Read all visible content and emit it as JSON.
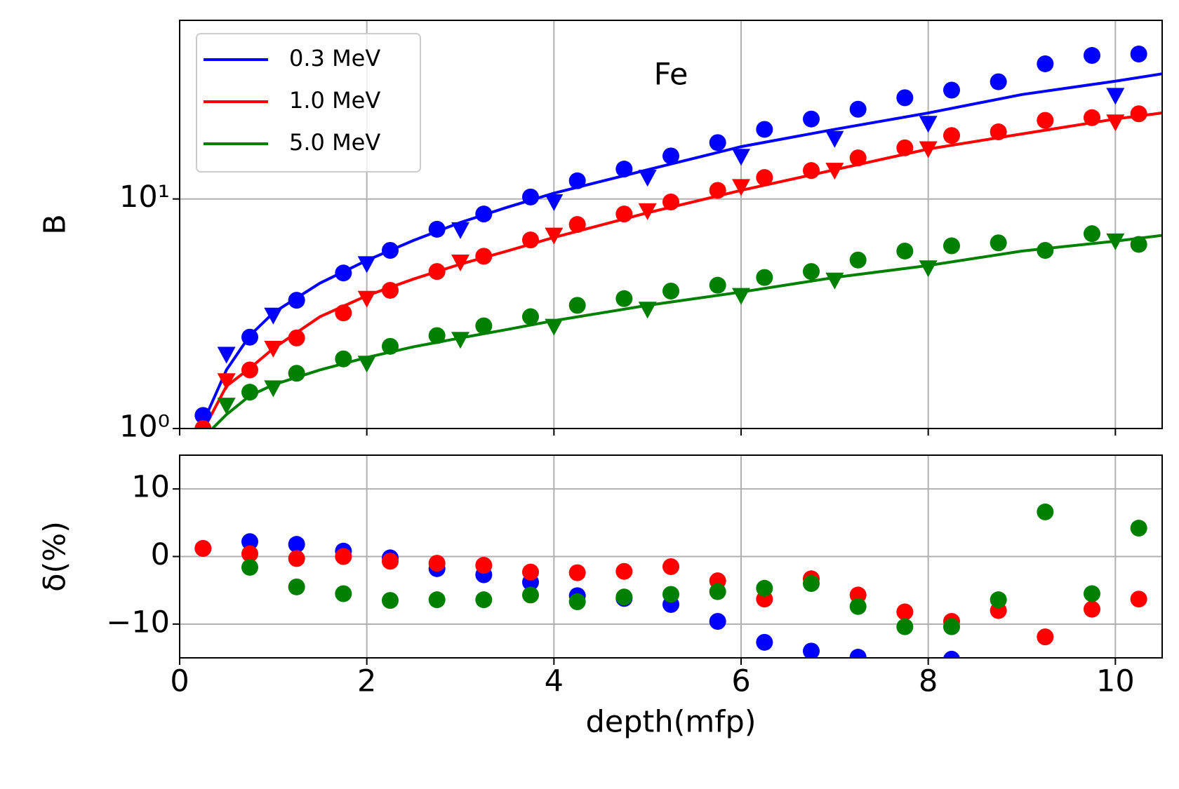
{
  "chart_data": [
    {
      "type": "line",
      "ylabel": "B",
      "annotation": "Fe",
      "log_y": true,
      "grid": true,
      "legend": "upper left",
      "xlim": [
        0,
        10.5
      ],
      "ylim": [
        1,
        60
      ],
      "xticks": [
        0,
        2,
        4,
        6,
        8,
        10
      ],
      "yticks": [
        {
          "value": 1,
          "label": "10⁰"
        },
        {
          "value": 10,
          "label": "10¹"
        }
      ],
      "series": [
        {
          "name": "0.3 MeV",
          "color": "#0000ff",
          "marker": "line",
          "x": [
            0.25,
            0.5,
            0.75,
            1,
            1.5,
            2,
            2.5,
            3,
            3.5,
            4,
            5,
            6,
            7,
            8,
            9,
            10,
            10.5
          ],
          "values": [
            1.06,
            1.8,
            2.54,
            3.19,
            4.3,
            5.4,
            6.6,
            7.9,
            9.2,
            10.6,
            13.4,
            16.9,
            20.1,
            23.7,
            28.5,
            32.6,
            35.1
          ]
        },
        {
          "name": "1.0 MeV",
          "color": "#ff0000",
          "marker": "line",
          "x": [
            0.25,
            0.5,
            0.75,
            1,
            1.5,
            2,
            2.5,
            3,
            3.5,
            4,
            5,
            6,
            7,
            8,
            9,
            10,
            10.5
          ],
          "values": [
            0.98,
            1.53,
            1.83,
            2.23,
            3.07,
            3.79,
            4.48,
            5.2,
            5.93,
            6.8,
            8.7,
            10.9,
            13.4,
            16.5,
            19.2,
            22.3,
            23.7
          ]
        },
        {
          "name": "5.0 MeV",
          "color": "#008000",
          "marker": "line",
          "x": [
            0.25,
            0.5,
            0.75,
            1,
            1.5,
            2,
            2.5,
            3,
            3.5,
            4,
            5,
            6,
            7,
            8,
            9,
            10,
            10.5
          ],
          "values": [
            0.91,
            1.15,
            1.39,
            1.55,
            1.8,
            2.04,
            2.27,
            2.48,
            2.7,
            2.95,
            3.44,
            3.93,
            4.55,
            5.13,
            5.93,
            6.55,
            6.94
          ]
        },
        {
          "color": "#0000ff",
          "marker": "circle",
          "x": [
            0.25,
            0.75,
            1.25,
            1.75,
            2.25,
            2.75,
            3.25,
            3.75,
            4.25,
            4.75,
            5.25,
            5.75,
            6.25,
            6.75,
            7.25,
            7.75,
            8.25,
            8.75,
            9.25,
            9.75,
            10.25
          ],
          "values": [
            1.14,
            2.5,
            3.62,
            4.76,
            5.97,
            7.38,
            8.6,
            10.2,
            12.0,
            13.5,
            15.4,
            17.6,
            20.1,
            22.3,
            24.6,
            27.6,
            29.8,
            32.4,
            38.8,
            42.2,
            42.8
          ]
        },
        {
          "color": "#ff0000",
          "marker": "circle",
          "x": [
            0.25,
            0.75,
            1.25,
            1.75,
            2.25,
            2.75,
            3.25,
            3.75,
            4.25,
            4.75,
            5.25,
            5.75,
            6.25,
            6.75,
            7.25,
            7.75,
            8.25,
            8.75,
            9.25,
            9.75,
            10.25
          ],
          "values": [
            1.0,
            1.8,
            2.48,
            3.19,
            4.0,
            4.83,
            5.63,
            6.63,
            7.74,
            8.6,
            9.7,
            10.9,
            12.4,
            13.3,
            15.1,
            16.7,
            18.9,
            19.6,
            22.0,
            22.6,
            23.5
          ]
        },
        {
          "color": "#008000",
          "marker": "circle",
          "x": [
            0.75,
            1.25,
            1.75,
            2.25,
            2.75,
            3.25,
            3.75,
            4.25,
            4.75,
            5.25,
            5.75,
            6.25,
            6.75,
            7.25,
            7.75,
            8.25,
            8.75,
            9.25,
            9.75,
            10.25
          ],
          "values": [
            1.44,
            1.74,
            2.01,
            2.28,
            2.54,
            2.8,
            3.07,
            3.44,
            3.68,
            3.97,
            4.21,
            4.55,
            4.83,
            5.42,
            5.93,
            6.25,
            6.44,
            5.97,
            7.06,
            6.34
          ]
        },
        {
          "color": "#0000ff",
          "marker": "triangle",
          "x": [
            0.5,
            1,
            2,
            3,
            4,
            5,
            6,
            7,
            8,
            10
          ],
          "values": [
            2.1,
            3.11,
            5.21,
            7.33,
            9.7,
            12.4,
            15.3,
            18.3,
            21.3,
            28.2
          ]
        },
        {
          "color": "#ff0000",
          "marker": "triangle",
          "x": [
            0.5,
            1,
            2,
            3,
            4,
            5,
            6,
            7,
            8,
            10
          ],
          "values": [
            1.61,
            2.23,
            3.68,
            5.3,
            6.94,
            8.86,
            11.3,
            13.3,
            16.5,
            21.6
          ]
        },
        {
          "color": "#008000",
          "marker": "triangle",
          "x": [
            0.5,
            1,
            2,
            3,
            4,
            5,
            6,
            7,
            8,
            10
          ],
          "values": [
            1.26,
            1.5,
            1.92,
            2.44,
            2.78,
            3.3,
            3.79,
            4.42,
            5.0,
            6.55
          ]
        }
      ]
    },
    {
      "type": "scatter",
      "ylabel": "δ(%)",
      "xlabel": "depth(mfp)",
      "grid": true,
      "xlim": [
        0,
        10.5
      ],
      "ylim": [
        -15,
        15
      ],
      "xticks": [
        0,
        2,
        4,
        6,
        8,
        10
      ],
      "yticks": [
        {
          "value": -10,
          "label": "−10"
        },
        0,
        10
      ],
      "x": [
        0.25,
        0.75,
        1.25,
        1.75,
        2.25,
        2.75,
        3.25,
        3.75,
        4.25,
        4.75,
        5.25,
        5.75,
        6.25,
        6.75,
        7.25,
        7.75,
        8.25,
        8.75,
        9.25,
        9.75,
        10.25
      ],
      "series": [
        {
          "color": "#0000ff",
          "values": [
            1.2,
            2.2,
            1.8,
            0.8,
            -0.2,
            -1.8,
            -2.7,
            -3.8,
            -5.8,
            -6.2,
            -7.1,
            -9.6,
            -12.7,
            -14.0,
            -14.9,
            null,
            -15.2,
            null,
            null,
            null,
            null
          ]
        },
        {
          "color": "#ff0000",
          "values": [
            1.2,
            0.4,
            -0.3,
            0,
            -0.7,
            -1.0,
            -1.3,
            -2.3,
            -2.4,
            -2.2,
            -1.5,
            -3.6,
            -6.3,
            -3.3,
            -5.7,
            -8.2,
            -9.6,
            -8.0,
            -11.9,
            -7.8,
            -6.3
          ]
        },
        {
          "color": "#008000",
          "values": [
            null,
            -1.6,
            -4.5,
            -5.5,
            -6.5,
            -6.4,
            -6.4,
            -5.7,
            -6.7,
            -6.0,
            -5.6,
            -5.2,
            -4.7,
            -4.0,
            -7.4,
            -10.4,
            -10.4,
            -6.4,
            6.6,
            -5.5,
            4.2
          ]
        }
      ]
    }
  ]
}
